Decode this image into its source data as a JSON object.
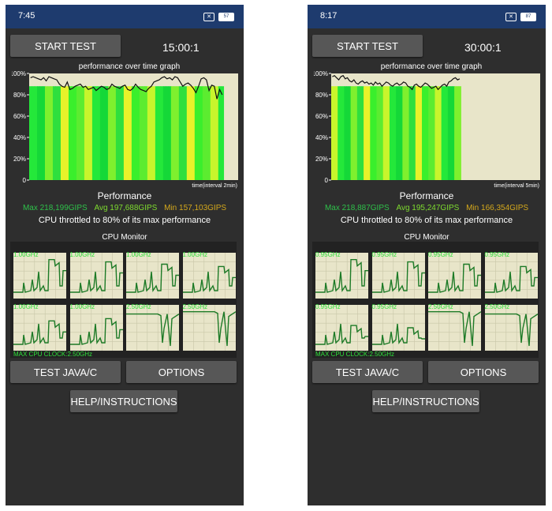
{
  "colors": {
    "statusbar": "#1e3b6e",
    "background": "#2e2e2e",
    "button": "#575757",
    "grid_bg": "#e8e5c9",
    "max": "#2ec04a",
    "avg": "#7edc2f",
    "min": "#d4a81c",
    "core_line": "#1c7a26",
    "core_label": "#2ee03a"
  },
  "labels": {
    "start_test": "START TEST",
    "graph_title": "performance over time graph",
    "performance": "Performance",
    "throttle_text": "CPU throttled to 80% of its max performance",
    "cpu_monitor": "CPU Monitor",
    "max_cpu_clock": "MAX CPU CLOCK:2.50GHz",
    "test_java": "TEST JAVA/C",
    "options": "OPTIONS",
    "help": "HELP/INSTRUCTIONS"
  },
  "icons": [
    "no-sim-icon",
    "battery-icon"
  ],
  "phones": [
    {
      "status_time": "7:45",
      "battery": "57",
      "timer": "15:00:1",
      "stats": {
        "max": "Max 218,199GIPS",
        "avg": "Avg 197,688GIPS",
        "min": "Min 157,103GIPS"
      },
      "chart_data": {
        "type": "line",
        "xlabel": "time(interval 2min)",
        "ylim": [
          0,
          100
        ],
        "y_ticks": [
          "0",
          "20%",
          "40%",
          "60%",
          "80%",
          "100%"
        ],
        "fill_fraction": 0.93,
        "values": [
          96,
          97,
          96,
          95,
          94,
          96,
          93,
          97,
          96,
          95,
          94,
          90,
          88,
          87,
          92,
          85,
          86,
          88,
          89,
          90,
          87,
          88,
          85,
          86,
          87,
          84,
          86,
          88,
          87,
          85,
          86,
          90,
          88,
          87,
          86,
          88,
          89,
          85,
          84,
          86,
          90,
          87,
          85,
          84,
          83,
          86,
          88,
          92,
          93,
          94,
          96,
          97,
          95,
          96,
          94,
          97,
          96,
          92,
          88,
          90,
          91,
          89,
          86,
          82,
          88,
          95,
          96,
          94,
          84,
          89,
          88,
          76,
          85,
          80
        ]
      },
      "cores": [
        {
          "label": "1.00GHz",
          "peak": 0.85
        },
        {
          "label": "1.00GHz",
          "peak": 0.8
        },
        {
          "label": "1.00GHz",
          "peak": 0.75
        },
        {
          "label": "1.00GHz",
          "peak": 0.7
        },
        {
          "label": "1.00GHz",
          "peak": 0.65
        },
        {
          "label": "1.00GHz",
          "peak": 0.7
        },
        {
          "label": "2.50GHz",
          "peak": 0.8
        },
        {
          "label": "2.50GHz",
          "peak": 0.85
        }
      ]
    },
    {
      "status_time": "8:17",
      "battery": "87",
      "timer": "30:00:1",
      "stats": {
        "max": "Max 218,887GIPS",
        "avg": "Avg 195,247GIPS",
        "min": "Min 166,354GIPS"
      },
      "chart_data": {
        "type": "line",
        "xlabel": "time(interval 5min)",
        "ylim": [
          0,
          100
        ],
        "y_ticks": [
          "0",
          "20%",
          "40%",
          "60%",
          "80%",
          "100%"
        ],
        "fill_fraction": 0.62,
        "values": [
          97,
          98,
          96,
          94,
          97,
          98,
          95,
          96,
          93,
          92,
          94,
          91,
          90,
          92,
          93,
          91,
          92,
          90,
          91,
          89,
          92,
          90,
          91,
          88,
          90,
          92,
          91,
          89,
          88,
          90,
          91,
          89,
          90,
          92,
          91,
          88,
          87,
          85,
          89,
          90,
          88,
          87,
          89,
          91,
          90,
          88,
          86,
          87,
          88,
          85,
          87,
          89,
          90,
          88,
          92,
          93,
          95,
          96,
          94,
          95
        ]
      },
      "cores": [
        {
          "label": "0.95GHz",
          "peak": 0.85
        },
        {
          "label": "0.95GHz",
          "peak": 0.8
        },
        {
          "label": "0.95GHz",
          "peak": 0.75
        },
        {
          "label": "0.95GHz",
          "peak": 0.7
        },
        {
          "label": "0.95GHz",
          "peak": 0.55
        },
        {
          "label": "0.95GHz",
          "peak": 0.5
        },
        {
          "label": "2.50GHz",
          "peak": 0.85
        },
        {
          "label": "2.50GHz",
          "peak": 0.8
        }
      ]
    }
  ]
}
